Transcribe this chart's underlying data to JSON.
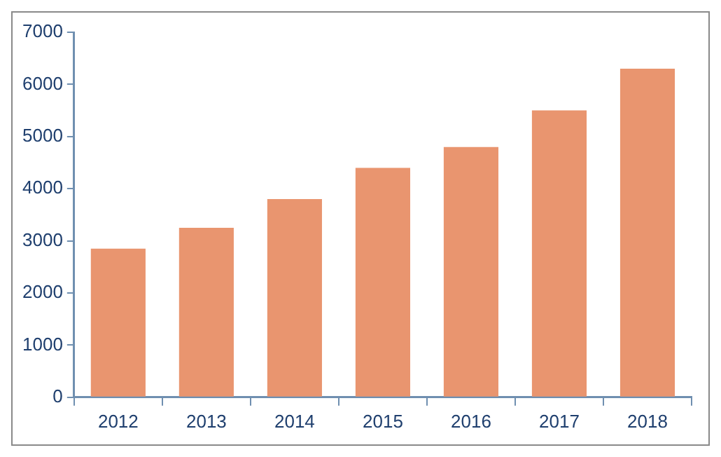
{
  "chart_data": {
    "type": "bar",
    "categories": [
      "2012",
      "2013",
      "2014",
      "2015",
      "2016",
      "2017",
      "2018"
    ],
    "values": [
      2850,
      3250,
      3800,
      4400,
      4800,
      5500,
      6300
    ],
    "color": "#e9956f",
    "ylim": [
      0,
      7000
    ],
    "yticks": [
      0,
      1000,
      2000,
      3000,
      4000,
      5000,
      6000,
      7000
    ],
    "grid": false,
    "legend": false
  }
}
